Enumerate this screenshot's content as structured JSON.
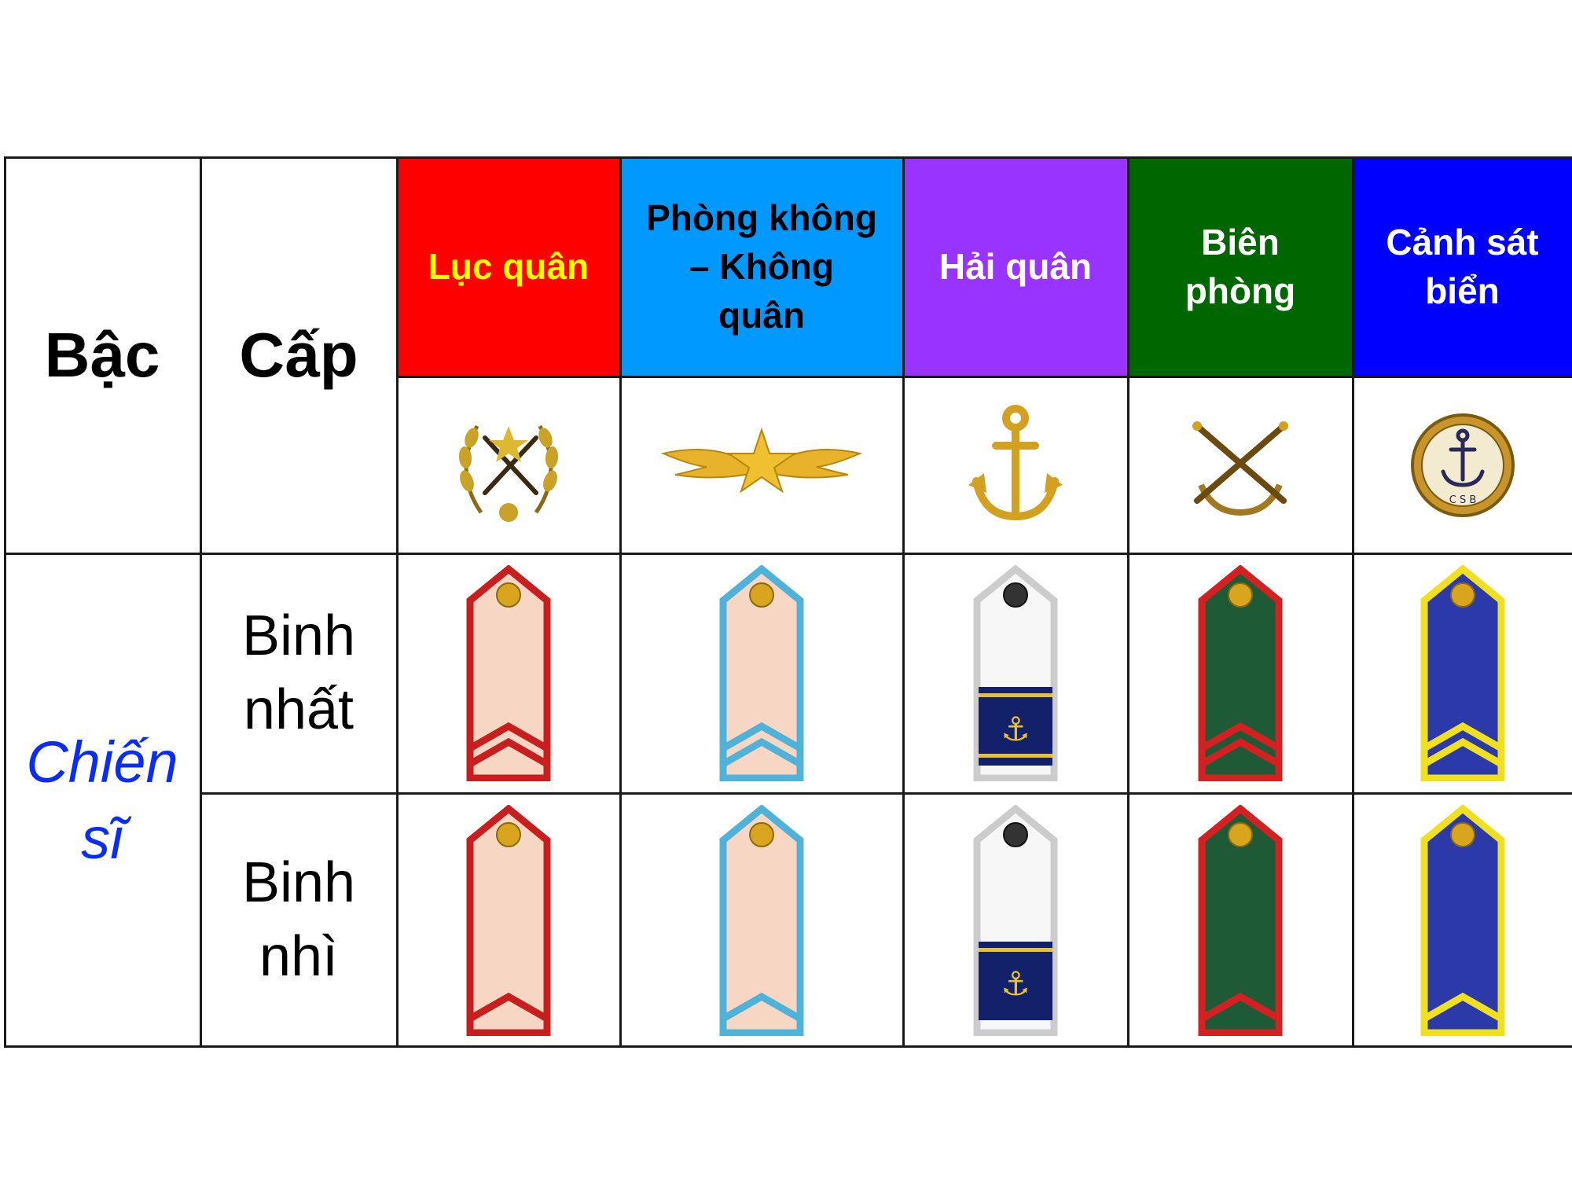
{
  "header": {
    "bac_label": "Bậc",
    "cap_label": "Cấp"
  },
  "services": [
    {
      "name_line1": "Lục quân",
      "name_line2": "",
      "name_line3": "",
      "bg": "#ff0000",
      "text_color": "#ffff00",
      "emblem": "army-wreath-star-icon",
      "border": "#c81e1e",
      "body": "#f7d7c4"
    },
    {
      "name_line1": "Phòng không",
      "name_line2": "– Không",
      "name_line3": "quân",
      "bg": "#0099ff",
      "text_color": "#000000",
      "emblem": "air-force-wings-icon",
      "border": "#4fb3d9",
      "body": "#f7d7c4"
    },
    {
      "name_line1": "Hải quân",
      "name_line2": "",
      "name_line3": "",
      "bg": "#9933ff",
      "text_color": "#ffffff",
      "emblem": "navy-anchor-icon",
      "border": "#cccccc",
      "body": "#f7f7f7"
    },
    {
      "name_line1": "Biên",
      "name_line2": "phòng",
      "name_line3": "",
      "bg": "#006600",
      "text_color": "#ffffff",
      "emblem": "border-guard-crossed-rifles-icon",
      "border": "#d42020",
      "body": "#1e5a36"
    },
    {
      "name_line1": "Cảnh sát",
      "name_line2": "biển",
      "name_line3": "",
      "bg": "#0000ff",
      "text_color": "#ffffff",
      "emblem": "coast-guard-anchor-badge-icon",
      "border": "#f0e020",
      "body": "#2b3aa8"
    }
  ],
  "tier": {
    "line1": "Chiến",
    "line2": "sĩ"
  },
  "ranks": [
    {
      "line1": "Binh",
      "line2": "nhất",
      "chevrons": 2
    },
    {
      "line1": "Binh",
      "line2": "nhì",
      "chevrons": 1
    }
  ],
  "emblem_text": {
    "csb": "C S B"
  }
}
